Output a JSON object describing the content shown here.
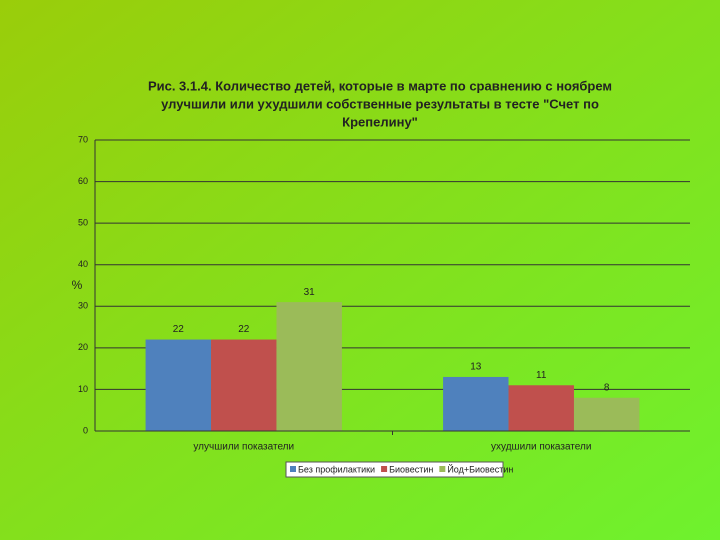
{
  "chart_data": {
    "type": "bar",
    "title": [
      "Рис. 3.1.4. Количество детей, которые в марте по сравнению с ноябрем",
      "улучшили или ухудшили собственные результаты в тесте \"Счет по",
      "Крепелину\""
    ],
    "y_label": "%",
    "categories": [
      "улучшили показатели",
      "ухудшили показатели"
    ],
    "series": [
      {
        "name": "Без профилактики",
        "color": "#4f81bd",
        "values": [
          22,
          13
        ]
      },
      {
        "name": "Биовестин",
        "color": "#c0504d",
        "values": [
          22,
          11
        ]
      },
      {
        "name": "Йод+Биовестин",
        "color": "#9bbb59",
        "values": [
          31,
          8
        ]
      }
    ],
    "ylim": [
      0,
      70
    ],
    "yticks": [
      0,
      10,
      20,
      30,
      40,
      50,
      60,
      70
    ],
    "grid": true,
    "legend": "bottom"
  }
}
